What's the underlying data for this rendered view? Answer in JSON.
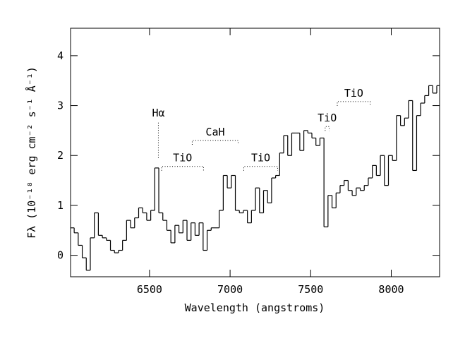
{
  "chart_data": {
    "type": "step",
    "xlabel": "Wavelength (angstroms)",
    "ylabel": "Fλ (10⁻¹⁸ erg cm⁻² s⁻¹ Å⁻¹)",
    "x": [
      6020,
      6045,
      6070,
      6095,
      6120,
      6145,
      6170,
      6195,
      6220,
      6245,
      6270,
      6295,
      6320,
      6345,
      6370,
      6395,
      6420,
      6445,
      6470,
      6495,
      6520,
      6545,
      6570,
      6595,
      6620,
      6645,
      6670,
      6695,
      6720,
      6745,
      6770,
      6795,
      6820,
      6845,
      6870,
      6895,
      6920,
      6945,
      6970,
      6995,
      7020,
      7045,
      7070,
      7095,
      7120,
      7145,
      7170,
      7195,
      7220,
      7245,
      7270,
      7295,
      7320,
      7345,
      7370,
      7395,
      7420,
      7445,
      7470,
      7495,
      7520,
      7545,
      7570,
      7595,
      7620,
      7645,
      7670,
      7695,
      7720,
      7745,
      7770,
      7795,
      7820,
      7845,
      7870,
      7895,
      7920,
      7945,
      7970,
      7995,
      8020,
      8045,
      8070,
      8095,
      8120,
      8145,
      8170,
      8195,
      8220,
      8245,
      8270,
      8295
    ],
    "values": [
      0.55,
      0.45,
      0.2,
      -0.05,
      -0.3,
      0.35,
      0.85,
      0.4,
      0.35,
      0.3,
      0.1,
      0.05,
      0.1,
      0.3,
      0.7,
      0.55,
      0.75,
      0.95,
      0.85,
      0.7,
      0.9,
      1.75,
      0.85,
      0.7,
      0.5,
      0.25,
      0.6,
      0.45,
      0.7,
      0.3,
      0.65,
      0.4,
      0.65,
      0.1,
      0.5,
      0.55,
      0.55,
      0.9,
      1.6,
      1.35,
      1.6,
      0.9,
      0.85,
      0.9,
      0.65,
      0.9,
      1.35,
      0.85,
      1.3,
      1.05,
      1.55,
      1.6,
      2.05,
      2.4,
      2.0,
      2.45,
      2.45,
      2.1,
      2.5,
      2.45,
      2.35,
      2.2,
      2.35,
      0.57,
      1.2,
      0.95,
      1.25,
      1.4,
      1.5,
      1.3,
      1.2,
      1.35,
      1.3,
      1.4,
      1.55,
      1.8,
      1.6,
      2.0,
      1.4,
      2.0,
      1.9,
      2.8,
      2.6,
      2.75,
      3.1,
      1.7,
      2.8,
      3.05,
      3.2,
      3.4,
      3.25,
      3.4
    ],
    "color": "#000000",
    "xlim": [
      6010,
      8300
    ],
    "ylim": [
      -0.43,
      4.55
    ],
    "xticks": [
      6500,
      7000,
      7500,
      8000
    ],
    "yticks": [
      0,
      1,
      2,
      3,
      4
    ],
    "annotations": [
      "Hα",
      "TiO",
      "CaH",
      "TiO",
      "TiO",
      "TiO"
    ]
  }
}
